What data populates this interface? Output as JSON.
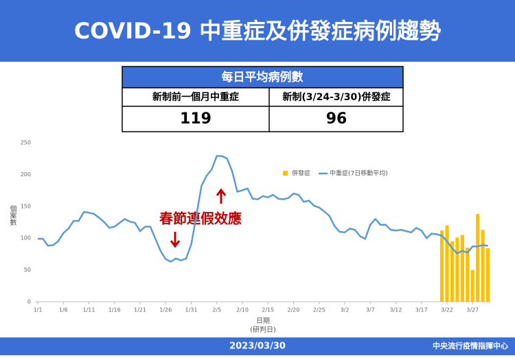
{
  "header": {
    "title": "COVID-19 中重症及併發症病例趨勢"
  },
  "table": {
    "title": "每日平均病例數",
    "headers": [
      "新制前一個月中重症",
      "新制(3/24-3/30)併發症"
    ],
    "values": [
      119,
      96
    ]
  },
  "chart_data": {
    "type": "bar-line",
    "ylabel": "個案數",
    "xlabel": "日期",
    "xlabel_note": "(研判日)",
    "annotation": "春節連假效應",
    "ylim": [
      0,
      250
    ],
    "yticks": [
      0,
      50,
      100,
      150,
      200,
      250
    ],
    "grid": false,
    "legend": "top-right",
    "categories": [
      "1/1",
      null,
      null,
      null,
      null,
      "1/6",
      null,
      null,
      null,
      null,
      "1/11",
      null,
      null,
      null,
      null,
      "1/16",
      null,
      null,
      null,
      null,
      "1/21",
      null,
      null,
      null,
      null,
      "1/26",
      null,
      null,
      null,
      null,
      "1/31",
      null,
      null,
      null,
      null,
      "2/5",
      null,
      null,
      null,
      null,
      "2/10",
      null,
      null,
      null,
      null,
      "2/15",
      null,
      null,
      null,
      null,
      "2/20",
      null,
      null,
      null,
      null,
      "2/25",
      null,
      null,
      null,
      null,
      "3/2",
      null,
      null,
      null,
      null,
      "3/7",
      null,
      null,
      null,
      null,
      "3/12",
      null,
      null,
      null,
      null,
      "3/17",
      null,
      null,
      null,
      null,
      "3/22",
      null,
      null,
      null,
      null,
      "3/27",
      null,
      null,
      null
    ],
    "series": [
      {
        "name": "併發症",
        "type": "bar",
        "color": "#ffc000",
        "values": [
          null,
          null,
          null,
          null,
          null,
          null,
          null,
          null,
          null,
          null,
          null,
          null,
          null,
          null,
          null,
          null,
          null,
          null,
          null,
          null,
          null,
          null,
          null,
          null,
          null,
          null,
          null,
          null,
          null,
          null,
          null,
          null,
          null,
          null,
          null,
          null,
          null,
          null,
          null,
          null,
          null,
          null,
          null,
          null,
          null,
          null,
          null,
          null,
          null,
          null,
          null,
          null,
          null,
          null,
          null,
          null,
          null,
          null,
          null,
          null,
          null,
          null,
          null,
          null,
          null,
          null,
          null,
          null,
          null,
          null,
          null,
          null,
          null,
          null,
          null,
          null,
          null,
          null,
          null,
          112,
          120,
          95,
          101,
          105,
          85,
          50,
          138,
          113,
          84
        ]
      },
      {
        "name": "中重症(7日移動平均)",
        "type": "line",
        "color": "#5b9bd5",
        "values": [
          99,
          99,
          88,
          89,
          95,
          108,
          115,
          127,
          127,
          141,
          140,
          138,
          132,
          125,
          116,
          118,
          124,
          130,
          126,
          124,
          111,
          118,
          118,
          99,
          80,
          67,
          63,
          68,
          65,
          68,
          90,
          135,
          182,
          198,
          208,
          229,
          229,
          225,
          205,
          173,
          175,
          178,
          162,
          161,
          166,
          164,
          168,
          162,
          161,
          163,
          170,
          168,
          157,
          159,
          151,
          148,
          142,
          135,
          119,
          110,
          109,
          115,
          113,
          103,
          99,
          121,
          130,
          121,
          121,
          113,
          112,
          113,
          111,
          109,
          116,
          112,
          100,
          107,
          106,
          104,
          95,
          84,
          76,
          80,
          77,
          87,
          87,
          89,
          88
        ]
      }
    ]
  },
  "footer": {
    "date": "2023/03/30",
    "source": "中央流行疫情指揮中心"
  }
}
